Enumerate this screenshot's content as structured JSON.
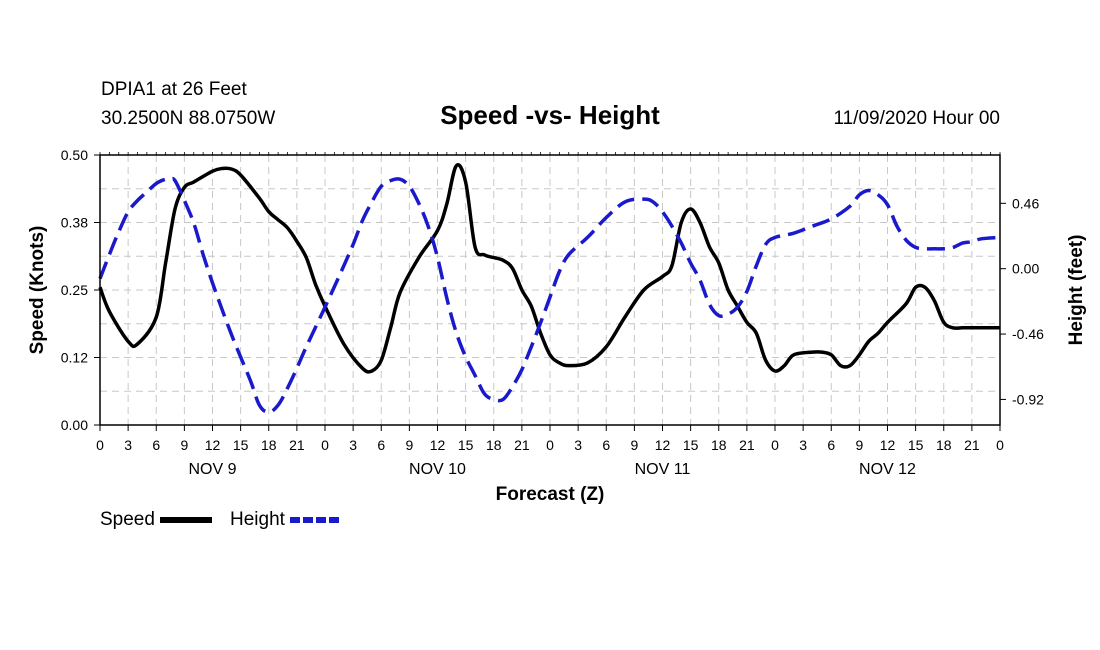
{
  "header": {
    "station": "DPIA1 at 26 Feet",
    "coords": "30.2500N 88.0750W",
    "title": "Speed -vs- Height",
    "datetime": "11/09/2020 Hour 00"
  },
  "chart_data": {
    "type": "line",
    "title": "Speed -vs- Height",
    "xlabel": "Forecast (Z)",
    "ylabel_left": "Speed (Knots)",
    "ylabel_right": "Height (feet)",
    "x_range_hours": [
      0,
      96
    ],
    "x_tick_labels": [
      "0",
      "3",
      "6",
      "9",
      "12",
      "15",
      "18",
      "21",
      "0",
      "3",
      "6",
      "9",
      "12",
      "15",
      "18",
      "21",
      "0",
      "3",
      "6",
      "9",
      "12",
      "15",
      "18",
      "21",
      "0",
      "3",
      "6",
      "9",
      "12",
      "15",
      "18",
      "21",
      "0"
    ],
    "day_labels": [
      {
        "label": "NOV 9",
        "hour": 12
      },
      {
        "label": "NOV 10",
        "hour": 36
      },
      {
        "label": "NOV 11",
        "hour": 60
      },
      {
        "label": "NOV 12",
        "hour": 84
      }
    ],
    "y_left": {
      "range": [
        0,
        0.5
      ],
      "ticks": [
        "0.00",
        "0.12",
        "0.25",
        "0.38",
        "0.50"
      ],
      "tick_values": [
        0,
        0.125,
        0.25,
        0.375,
        0.5
      ]
    },
    "y_right": {
      "range": [
        -1.1,
        0.8
      ],
      "ticks": [
        "0.46",
        "0.00",
        "-0.46",
        "-0.92"
      ],
      "tick_values": [
        0.46,
        0.0,
        -0.46,
        -0.92
      ]
    },
    "grid": true,
    "series": [
      {
        "name": "Speed",
        "axis": "left",
        "color": "#000000",
        "style": "solid",
        "x": [
          0,
          1,
          3,
          4,
          6,
          7,
          8,
          9,
          10,
          12,
          13,
          14,
          15,
          17,
          18,
          19,
          20,
          21,
          22,
          23,
          24,
          26,
          28,
          29,
          30,
          31,
          32,
          34,
          36,
          37,
          38,
          39,
          40,
          41,
          42,
          43,
          44,
          45,
          46,
          47,
          48,
          49,
          50,
          52,
          54,
          56,
          58,
          60,
          61,
          62,
          63,
          64,
          65,
          66,
          67,
          68,
          69,
          70,
          71,
          72,
          73,
          74,
          76,
          77,
          78,
          79,
          80,
          81,
          82,
          83,
          84,
          86,
          87,
          88,
          89,
          90,
          91,
          92,
          93,
          94,
          96
        ],
        "values": [
          0.255,
          0.21,
          0.155,
          0.15,
          0.2,
          0.3,
          0.4,
          0.44,
          0.45,
          0.47,
          0.475,
          0.474,
          0.463,
          0.42,
          0.395,
          0.38,
          0.365,
          0.34,
          0.31,
          0.26,
          0.22,
          0.15,
          0.105,
          0.1,
          0.12,
          0.18,
          0.245,
          0.31,
          0.36,
          0.41,
          0.48,
          0.45,
          0.33,
          0.315,
          0.31,
          0.305,
          0.29,
          0.25,
          0.22,
          0.17,
          0.13,
          0.115,
          0.11,
          0.115,
          0.145,
          0.2,
          0.25,
          0.275,
          0.295,
          0.375,
          0.4,
          0.375,
          0.33,
          0.3,
          0.25,
          0.22,
          0.19,
          0.17,
          0.12,
          0.1,
          0.11,
          0.13,
          0.135,
          0.135,
          0.13,
          0.11,
          0.11,
          0.13,
          0.155,
          0.17,
          0.19,
          0.225,
          0.255,
          0.255,
          0.23,
          0.19,
          0.18,
          0.18,
          0.18,
          0.18,
          0.18
        ]
      },
      {
        "name": "Height",
        "axis": "right",
        "color": "#1a1acc",
        "style": "dashed",
        "x": [
          0,
          1,
          2,
          3,
          4,
          5,
          6,
          7,
          7.5,
          8,
          9,
          10,
          11,
          12,
          14,
          16,
          17,
          18,
          19,
          20,
          21,
          22,
          24,
          26,
          27,
          28,
          29,
          30,
          31,
          32,
          33,
          34,
          35,
          36,
          37,
          38,
          39,
          40,
          41,
          42,
          43,
          44,
          45,
          46,
          47,
          48,
          49,
          50,
          52,
          54,
          56,
          58,
          59,
          60,
          61,
          62,
          63,
          64,
          65,
          66,
          67,
          68,
          69,
          70,
          71,
          72,
          74,
          76,
          78,
          80,
          81,
          82,
          83,
          84,
          85,
          86,
          87,
          88,
          89,
          90,
          91,
          92,
          93,
          94,
          96
        ],
        "values": [
          -0.07,
          0.1,
          0.26,
          0.4,
          0.48,
          0.54,
          0.6,
          0.63,
          0.63,
          0.62,
          0.48,
          0.32,
          0.1,
          -0.1,
          -0.46,
          -0.78,
          -0.96,
          -1.01,
          -0.96,
          -0.84,
          -0.7,
          -0.55,
          -0.27,
          0.02,
          0.17,
          0.34,
          0.47,
          0.58,
          0.62,
          0.63,
          0.58,
          0.46,
          0.3,
          0.08,
          -0.21,
          -0.45,
          -0.62,
          -0.75,
          -0.88,
          -0.92,
          -0.92,
          -0.83,
          -0.71,
          -0.55,
          -0.38,
          -0.2,
          -0.02,
          0.1,
          0.22,
          0.36,
          0.47,
          0.49,
          0.47,
          0.4,
          0.3,
          0.18,
          0.04,
          -0.08,
          -0.25,
          -0.33,
          -0.32,
          -0.27,
          -0.16,
          0.02,
          0.17,
          0.22,
          0.25,
          0.3,
          0.35,
          0.44,
          0.52,
          0.55,
          0.52,
          0.45,
          0.3,
          0.2,
          0.15,
          0.14,
          0.14,
          0.14,
          0.15,
          0.18,
          0.19,
          0.21,
          0.22
        ]
      }
    ]
  },
  "legend": {
    "items": [
      {
        "label": "Speed",
        "color": "#000000",
        "style": "solid"
      },
      {
        "label": "Height",
        "color": "#1a1acc",
        "style": "dashed"
      }
    ]
  }
}
